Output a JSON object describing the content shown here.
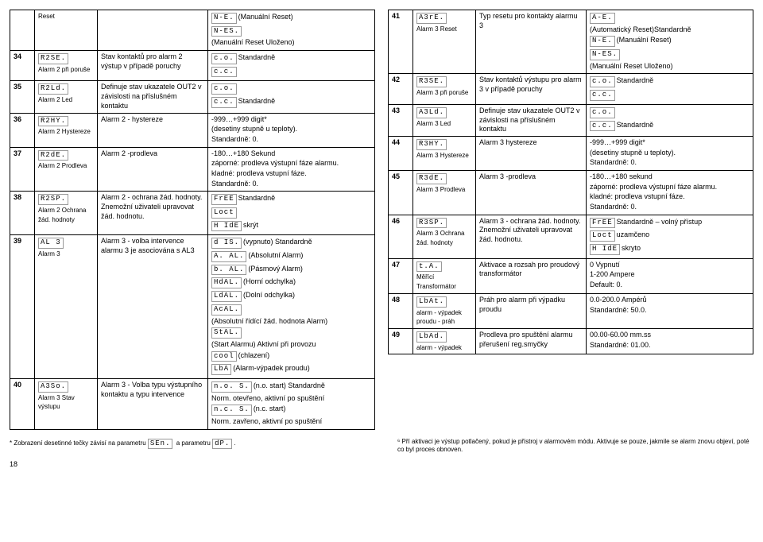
{
  "left": [
    {
      "num": "",
      "label": "Reset",
      "desc": "",
      "val_lines": [
        {
          "d": "N-E.",
          "t": "(Manuální Reset)"
        },
        {
          "d": "N-ES.",
          "t": ""
        },
        {
          "t": "(Manuální Reset Uloženo)"
        }
      ]
    },
    {
      "num": "34",
      "label": "Alarm 2 při poruše",
      "label_disp": "R2SE.",
      "desc": "Stav kontaktů pro alarm 2 výstup v případě poruchy",
      "val_lines": [
        {
          "d": "c.o.",
          "t": "Standardně"
        },
        {
          "d": "c.c.",
          "t": ""
        }
      ]
    },
    {
      "num": "35",
      "label": "Alarm 2 Led",
      "label_disp": "R2Ld.",
      "desc": "Definuje stav ukazatele OUT2 v závislosti na příslušném kontaktu",
      "val_lines": [
        {
          "d": "c.o.",
          "t": ""
        },
        {
          "d": "c.c.",
          "t": "Standardně"
        }
      ]
    },
    {
      "num": "36",
      "label": "Alarm 2 Hystereze",
      "label_disp": "R2HY.",
      "desc": "Alarm 2 - hystereze",
      "val_lines": [
        {
          "t": "-999…+999  digit*"
        },
        {
          "t": "(desetiny stupně u teploty)."
        },
        {
          "t": "Standardně: 0."
        }
      ]
    },
    {
      "num": "37",
      "label": "Alarm 2 Prodleva",
      "label_disp": "R2dE.",
      "desc": "Alarm 2 -prodleva",
      "val_lines": [
        {
          "t": "-180…+180 Sekund"
        },
        {
          "t": "záporné: prodleva výstupní fáze alarmu."
        },
        {
          "t": "kladné: prodleva vstupní fáze."
        },
        {
          "t": "Standardně: 0."
        }
      ]
    },
    {
      "num": "38",
      "label": "Alarm 2 Ochrana žád. hodnoty",
      "label_disp": "R2SP.",
      "desc": "Alarm 2 - ochrana žád. hodnoty. Znemožní uživateli upravovat žád. hodnotu.",
      "val_lines": [
        {
          "d": "FrEE",
          "t": "Standardně"
        },
        {
          "d": "Loct",
          "t": ""
        },
        {
          "d": "H IdE",
          "t": "skrýt"
        }
      ]
    },
    {
      "num": "39",
      "label": "Alarm 3",
      "label_disp": "AL 3",
      "desc": "Alarm 3 - volba intervence alarmu 3 je asociována s AL3",
      "val_lines": [
        {
          "d": "d IS.",
          "t": "(vypnuto) Standardně"
        },
        {
          "d": "A. AL.",
          "t": "(Absolutní Alarm)"
        },
        {
          "d": "b. AL.",
          "t": "(Pásmový Alarm)"
        },
        {
          "d": "HdAL.",
          "t": "(Horní odchylka)"
        },
        {
          "d": "LdAL.",
          "t": "(Dolní odchylka)"
        },
        {
          "d": "AcAL.",
          "t": ""
        },
        {
          "t": "(Absolutní řídící žád. hodnota Alarm)"
        },
        {
          "d": "StAL.",
          "t": ""
        },
        {
          "t": "(Start Alarmu) Aktivní při provozu"
        },
        {
          "d": "cool",
          "t": "(chlazení)"
        },
        {
          "d": "LbA",
          "t": "(Alarm-výpadek proudu)"
        }
      ]
    },
    {
      "num": "40",
      "label": "Alarm 3 Stav výstupu",
      "label_disp": "A3So.",
      "desc": "Alarm 3 - Volba  typu výstupního kontaktu a typu intervence",
      "val_lines": [
        {
          "d": "n.o.  S.",
          "t": "(n.o. start) Standardně"
        },
        {
          "t": "Norm. otevřeno, aktivní po spuštění"
        },
        {
          "d": "n.c.  S.",
          "t": "(n.c. start)"
        },
        {
          "t": "Norm. zavřeno, aktivní po spuštění"
        }
      ]
    }
  ],
  "right": [
    {
      "num": "41",
      "label": "Alarm 3 Reset",
      "label_disp": "A3rE.",
      "desc": "Typ resetu pro kontakty alarmu 3",
      "val_lines": [
        {
          "d": "A-E.",
          "t": ""
        },
        {
          "t": "(Automatický Reset)Standardně"
        },
        {
          "d": "N-E.",
          "t": "(Manuální Reset)"
        },
        {
          "d": "N-ES.",
          "t": ""
        },
        {
          "t": "(Manuální Reset Uloženo)"
        }
      ]
    },
    {
      "num": "42",
      "label": "Alarm 3 při poruše",
      "label_disp": "R3SE.",
      "desc": "Stav kontaktů výstupu pro alarm 3 v případě poruchy",
      "val_lines": [
        {
          "d": "c.o.",
          "t": "Standardně"
        },
        {
          "d": "c.c.",
          "t": ""
        }
      ]
    },
    {
      "num": "43",
      "label": "Alarm 3 Led",
      "label_disp": "A3Ld.",
      "desc": "Definuje stav ukazatele OUT2 v závislosti na příslušném kontaktu",
      "val_lines": [
        {
          "d": "c.o.",
          "t": ""
        },
        {
          "d": "c.c.",
          "t": "Standardně"
        }
      ]
    },
    {
      "num": "44",
      "label": "Alarm 3 Hystereze",
      "label_disp": "R3HY.",
      "desc": "Alarm 3 hystereze",
      "val_lines": [
        {
          "t": "-999…+999  digit*"
        },
        {
          "t": "(desetiny stupně u teploty)."
        },
        {
          "t": "Standardně: 0."
        }
      ]
    },
    {
      "num": "45",
      "label": "Alarm 3 Prodleva",
      "label_disp": "R3dE.",
      "desc": "Alarm 3 -prodleva",
      "val_lines": [
        {
          "t": "-180…+180 sekund"
        },
        {
          "t": "záporné: prodleva výstupní fáze alarmu."
        },
        {
          "t": "kladné: prodleva vstupní fáze."
        },
        {
          "t": "Standardně: 0."
        }
      ]
    },
    {
      "num": "46",
      "label": "Alarm 3 Ochrana žád. hodnoty",
      "label_disp": "R3SP.",
      "desc": "Alarm 3 - ochrana žád. hodnoty. Znemožní uživateli upravovat žád. hodnotu.",
      "val_lines": [
        {
          "d": "FrEE",
          "t": "Standardně – volný přístup"
        },
        {
          "d": "Loct",
          "t": "uzamčeno"
        },
        {
          "d": "H IdE",
          "t": "skryto"
        }
      ]
    },
    {
      "num": "47",
      "label": "Měřící Transformátor",
      "label_disp": "t.A.",
      "desc": "Aktivace a rozsah pro proudový transformátor",
      "val_lines": [
        {
          "t": "0         Vypnutí"
        },
        {
          "t": "1-200 Ampere"
        },
        {
          "t": "Default: 0."
        }
      ]
    },
    {
      "num": "48",
      "label": "alarm - výpadek proudu - práh",
      "label_disp": "LbAt.",
      "desc": "Práh pro alarm při výpadku proudu",
      "val_lines": [
        {
          "t": "0.0-200.0 Ampérů"
        },
        {
          "t": "Standardně: 50.0."
        }
      ]
    },
    {
      "num": "49",
      "label": "alarm - výpadek",
      "label_disp": "LbAd.",
      "desc": "Prodleva pro spuštění alarmu přerušení reg.smyčky",
      "val_lines": [
        {
          "t": "00.00-60.00 mm.ss"
        },
        {
          "t": "Standardně: 01.00."
        }
      ]
    }
  ],
  "fn_left_a": "* Zobrazení desetinné tečky závisí na parametru ",
  "fn_left_d1": "SEn.",
  "fn_left_b": " a  parametru ",
  "fn_left_d2": "dP.",
  "fn_right": "⁶ Pří aktivaci je výstup potlačený, pokud je přístroj v alarmovém módu. Aktivuje se pouze, jakmile se alarm znovu objeví, poté co byl  proces obnoven.",
  "pg": "18"
}
